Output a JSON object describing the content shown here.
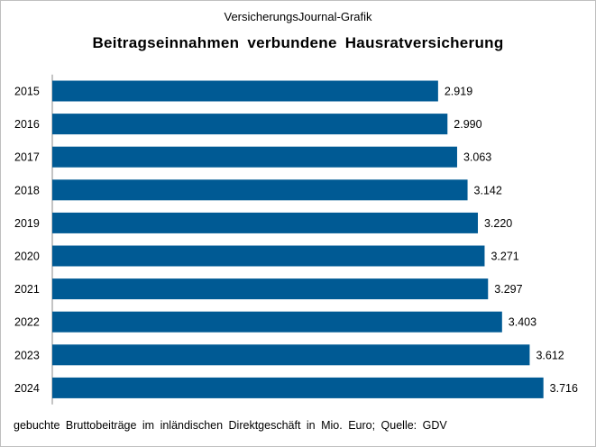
{
  "header": {
    "supertitle": "VersicherungsJournal-Grafik",
    "title": "Beitragseinnahmen verbundene Hausratversicherung"
  },
  "footnote": "gebuchte Bruttobeiträge im inländischen Direktgeschäft in Mio. Euro; Quelle: GDV",
  "colors": {
    "bar": "#005a94",
    "axis": "#888888"
  },
  "chart_data": {
    "type": "bar",
    "orientation": "horizontal",
    "categories": [
      "2015",
      "2016",
      "2017",
      "2018",
      "2019",
      "2020",
      "2021",
      "2022",
      "2023",
      "2024"
    ],
    "values": [
      2919,
      2990,
      3063,
      3142,
      3220,
      3271,
      3297,
      3403,
      3612,
      3716
    ],
    "value_labels": [
      "2.919",
      "2.990",
      "3.063",
      "3.142",
      "3.220",
      "3.271",
      "3.297",
      "3.403",
      "3.612",
      "3.716"
    ],
    "title": "Beitragseinnahmen verbundene Hausratversicherung",
    "xlabel": "",
    "ylabel": "",
    "xlim": [
      0,
      3800
    ],
    "grid": false,
    "legend": "none"
  }
}
